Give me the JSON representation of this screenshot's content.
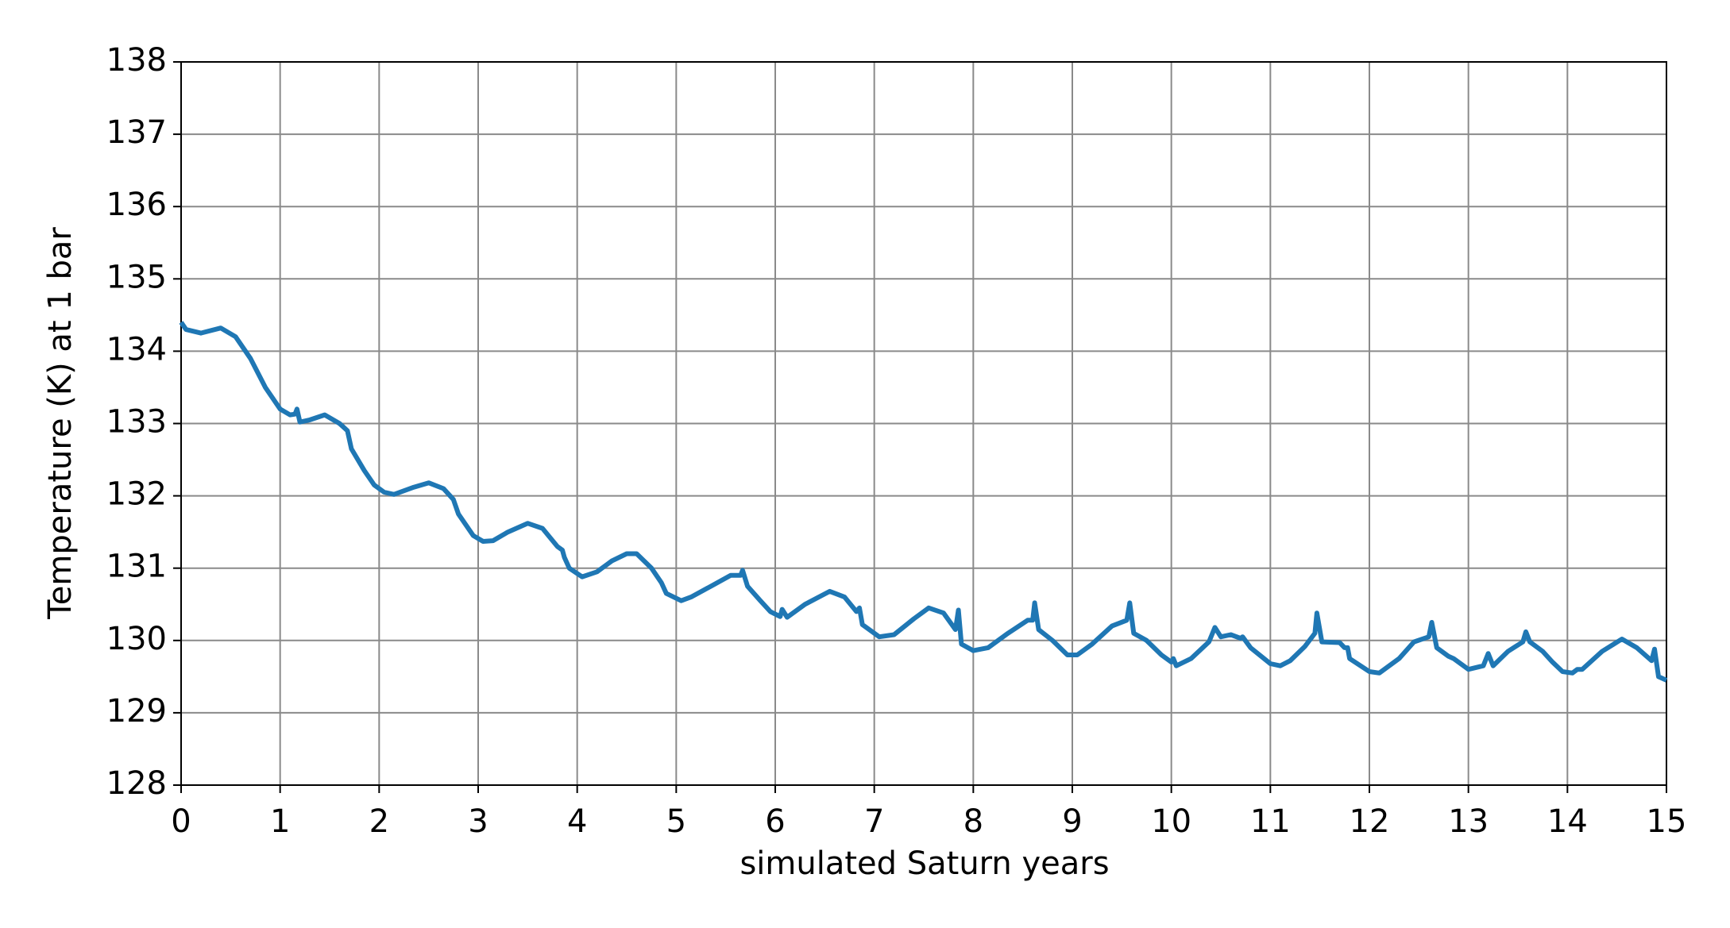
{
  "chart_data": {
    "type": "line",
    "xlabel": "simulated Saturn years",
    "ylabel": "Temperature (K) at 1 bar",
    "xlim": [
      0,
      15
    ],
    "ylim": [
      128,
      138
    ],
    "xticks": [
      0,
      1,
      2,
      3,
      4,
      5,
      6,
      7,
      8,
      9,
      10,
      11,
      12,
      13,
      14,
      15
    ],
    "yticks": [
      128,
      129,
      130,
      131,
      132,
      133,
      134,
      135,
      136,
      137,
      138
    ],
    "grid": true,
    "x": [
      0,
      0.05,
      0.2,
      0.4,
      0.55,
      0.7,
      0.85,
      1.0,
      1.1,
      1.15,
      1.17,
      1.2,
      1.3,
      1.45,
      1.6,
      1.68,
      1.72,
      1.85,
      1.95,
      2.05,
      2.15,
      2.35,
      2.5,
      2.65,
      2.75,
      2.8,
      2.95,
      3.05,
      3.15,
      3.3,
      3.5,
      3.65,
      3.8,
      3.85,
      3.87,
      3.92,
      4.05,
      4.2,
      4.35,
      4.5,
      4.6,
      4.75,
      4.85,
      4.9,
      5.05,
      5.15,
      5.35,
      5.55,
      5.65,
      5.67,
      5.72,
      5.85,
      5.95,
      6.05,
      6.07,
      6.12,
      6.3,
      6.55,
      6.7,
      6.82,
      6.85,
      6.88,
      7.05,
      7.2,
      7.4,
      7.55,
      7.7,
      7.82,
      7.85,
      7.88,
      8.0,
      8.15,
      8.35,
      8.55,
      8.6,
      8.62,
      8.66,
      8.8,
      8.95,
      9.05,
      9.2,
      9.4,
      9.55,
      9.58,
      9.62,
      9.75,
      9.9,
      10.0,
      10.02,
      10.05,
      10.2,
      10.38,
      10.44,
      10.5,
      10.6,
      10.7,
      10.72,
      10.8,
      11.0,
      11.1,
      11.2,
      11.35,
      11.45,
      11.47,
      11.52,
      11.7,
      11.75,
      11.78,
      11.8,
      12.0,
      12.1,
      12.3,
      12.45,
      12.6,
      12.63,
      12.68,
      12.8,
      12.85,
      13.0,
      13.15,
      13.2,
      13.25,
      13.4,
      13.55,
      13.58,
      13.62,
      13.75,
      13.85,
      13.95,
      14.05,
      14.1,
      14.15,
      14.35,
      14.55,
      14.7,
      14.85,
      14.88,
      14.92,
      15.0
    ],
    "series": [
      {
        "color": "#1f77b4",
        "values": [
          134.4,
          134.3,
          134.25,
          134.32,
          134.2,
          133.9,
          133.5,
          133.2,
          133.12,
          133.13,
          133.2,
          133.02,
          133.05,
          133.12,
          133.0,
          132.9,
          132.65,
          132.35,
          132.15,
          132.05,
          132.02,
          132.12,
          132.18,
          132.1,
          131.95,
          131.75,
          131.45,
          131.37,
          131.38,
          131.5,
          131.62,
          131.55,
          131.3,
          131.25,
          131.15,
          131.0,
          130.88,
          130.95,
          131.1,
          131.2,
          131.2,
          131.0,
          130.8,
          130.65,
          130.55,
          130.6,
          130.75,
          130.9,
          130.9,
          130.97,
          130.75,
          130.55,
          130.4,
          130.33,
          130.43,
          130.32,
          130.5,
          130.68,
          130.6,
          130.4,
          130.45,
          130.22,
          130.05,
          130.08,
          130.3,
          130.45,
          130.38,
          130.15,
          130.42,
          129.95,
          129.86,
          129.9,
          130.1,
          130.28,
          130.28,
          130.52,
          130.15,
          130.0,
          129.8,
          129.8,
          129.95,
          130.2,
          130.28,
          130.52,
          130.1,
          130.0,
          129.8,
          129.7,
          129.75,
          129.65,
          129.75,
          129.98,
          130.18,
          130.05,
          130.08,
          130.03,
          130.05,
          129.9,
          129.68,
          129.65,
          129.72,
          129.92,
          130.1,
          130.38,
          129.98,
          129.97,
          129.9,
          129.9,
          129.75,
          129.57,
          129.55,
          129.75,
          129.98,
          130.05,
          130.25,
          129.9,
          129.78,
          129.75,
          129.6,
          129.65,
          129.82,
          129.65,
          129.85,
          129.98,
          130.12,
          129.98,
          129.85,
          129.7,
          129.57,
          129.55,
          129.6,
          129.6,
          129.85,
          130.02,
          129.9,
          129.72,
          129.88,
          129.5,
          129.45
        ]
      }
    ]
  }
}
